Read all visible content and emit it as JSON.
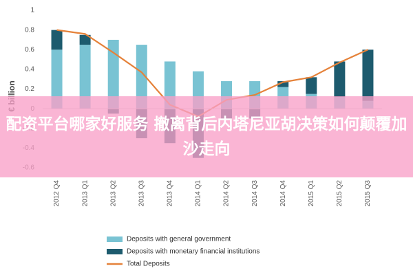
{
  "chart_data": {
    "type": "bar",
    "stacked": true,
    "y_label": "€ billion",
    "categories": [
      "2012 Q4",
      "2013 Q1",
      "2013 Q2",
      "2013 Q3",
      "2013 Q4",
      "2014 Q1",
      "2014 Q2",
      "2014 Q3",
      "2014 Q4",
      "2015 Q1",
      "2015 Q2",
      "2015 Q3"
    ],
    "series": [
      {
        "name": "Deposits with general government",
        "type": "bar",
        "color": "#79c3d3",
        "values": [
          0.6,
          0.65,
          0.7,
          0.65,
          0.48,
          0.38,
          0.28,
          0.28,
          0.22,
          0.15,
          0.12,
          0.08
        ]
      },
      {
        "name": "Deposits with monetary financial institutions",
        "type": "bar",
        "color": "#1d5b6e",
        "values": [
          0.2,
          0.1,
          -0.05,
          -0.3,
          -0.35,
          -0.5,
          -0.1,
          -0.1,
          0.06,
          0.17,
          0.36,
          0.52
        ]
      },
      {
        "name": "Total Deposits",
        "type": "line",
        "color": "#e5823a",
        "values": [
          0.8,
          0.76,
          0.57,
          0.37,
          0.04,
          -0.08,
          0.09,
          0.14,
          0.27,
          0.32,
          0.47,
          0.6
        ]
      }
    ],
    "ylim": [
      -0.6,
      1
    ],
    "yticks": [
      -0.6,
      -0.4,
      -0.2,
      0,
      0.2,
      0.4,
      0.6,
      0.8,
      1
    ],
    "grid": false
  },
  "overlay": {
    "text": "配资平台哪家好服务 撤离背后内塔尼亚胡决策如何颠覆加沙走向"
  }
}
